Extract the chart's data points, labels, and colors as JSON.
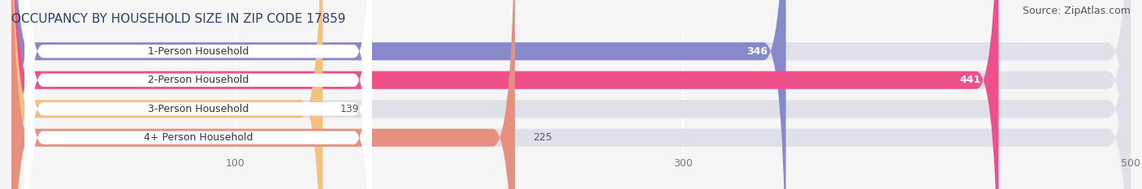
{
  "title": "OCCUPANCY BY HOUSEHOLD SIZE IN ZIP CODE 17859",
  "source": "Source: ZipAtlas.com",
  "categories": [
    "1-Person Household",
    "2-Person Household",
    "3-Person Household",
    "4+ Person Household"
  ],
  "values": [
    346,
    441,
    139,
    225
  ],
  "bar_colors": [
    "#8888cc",
    "#f0508a",
    "#f5c080",
    "#e89080"
  ],
  "bar_bg_color": "#e0e0e8",
  "label_bg_color": "#ffffff",
  "xlim": [
    0,
    500
  ],
  "xticks": [
    100,
    300,
    500
  ],
  "figsize": [
    14.06,
    2.33
  ],
  "dpi": 100,
  "title_fontsize": 11,
  "source_fontsize": 9,
  "label_fontsize": 9,
  "value_fontsize": 9,
  "tick_fontsize": 9,
  "bar_height": 0.62,
  "background_color": "#f5f5f5",
  "label_color": "#333333",
  "value_inside_color": "#ffffff",
  "value_outside_color": "#555555",
  "title_color": "#2c3e6b",
  "source_color": "#555555"
}
